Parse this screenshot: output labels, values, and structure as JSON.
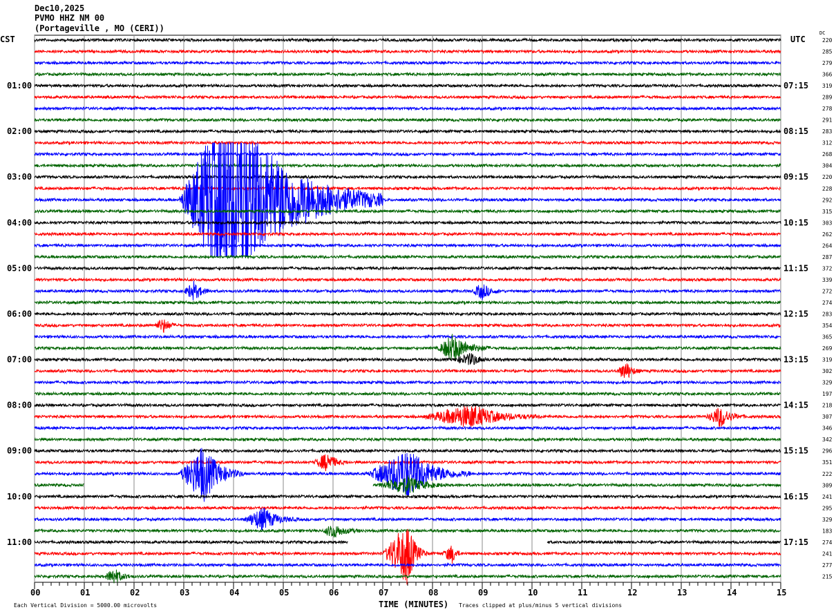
{
  "header": {
    "date": "Dec10,2025",
    "station": "PVMO HHZ NM 00",
    "location": "(Portageville , MO (CERI))"
  },
  "chart_data": {
    "type": "line",
    "title": "PVMO HHZ NM 00",
    "left_timezone": "CST",
    "right_timezone": "UTC",
    "dc_label": "DC",
    "xlabel": "TIME (MINUTES)",
    "xlim": [
      0,
      15
    ],
    "x_ticks": [
      "00",
      "01",
      "02",
      "03",
      "04",
      "05",
      "06",
      "07",
      "08",
      "09",
      "10",
      "11",
      "12",
      "13",
      "14",
      "15"
    ],
    "left_hour_labels": [
      "01:00",
      "02:00",
      "03:00",
      "04:00",
      "05:00",
      "06:00",
      "07:00",
      "08:00",
      "09:00",
      "10:00",
      "11:00"
    ],
    "right_hour_labels": [
      "07:15",
      "08:15",
      "09:15",
      "10:15",
      "11:15",
      "12:15",
      "13:15",
      "14:15",
      "15:15",
      "16:15",
      "17:15"
    ],
    "rows_per_hour": 4,
    "trace_colors": [
      "#000000",
      "#ff0000",
      "#0000ff",
      "#006400"
    ],
    "dc_values": [
      "220",
      "285",
      "279",
      "366",
      "319",
      "289",
      "278",
      "291",
      "283",
      "312",
      "268",
      "304",
      "220",
      "228",
      "292",
      "315",
      "303",
      "262",
      "264",
      "287",
      "372",
      "339",
      "272",
      "274",
      "283",
      "354",
      "365",
      "269",
      "319",
      "302",
      "329",
      "197",
      "218",
      "307",
      "346",
      "342",
      "296",
      "351",
      "222",
      "309",
      "241",
      "295",
      "329",
      "183",
      "274",
      "241",
      "277",
      "215"
    ],
    "events": [
      {
        "row": 14,
        "start_min": 2.9,
        "peak_min": 3.9,
        "end_min": 7.0,
        "amplitude_div": 9
      },
      {
        "row": 22,
        "start_min": 3.0,
        "peak_min": 3.2,
        "end_min": 3.6,
        "amplitude_div": 0.8
      },
      {
        "row": 22,
        "start_min": 8.8,
        "peak_min": 9.0,
        "end_min": 9.4,
        "amplitude_div": 0.7
      },
      {
        "row": 25,
        "start_min": 2.4,
        "peak_min": 2.6,
        "end_min": 2.9,
        "amplitude_div": 0.6
      },
      {
        "row": 27,
        "start_min": 8.1,
        "peak_min": 8.4,
        "end_min": 9.2,
        "amplitude_div": 1.2
      },
      {
        "row": 28,
        "start_min": 8.4,
        "peak_min": 8.8,
        "end_min": 9.2,
        "amplitude_div": 0.5
      },
      {
        "row": 29,
        "start_min": 11.7,
        "peak_min": 11.9,
        "end_min": 12.2,
        "amplitude_div": 0.8
      },
      {
        "row": 33,
        "start_min": 7.8,
        "peak_min": 8.8,
        "end_min": 10.2,
        "amplitude_div": 1.0
      },
      {
        "row": 33,
        "start_min": 13.5,
        "peak_min": 13.8,
        "end_min": 14.3,
        "amplitude_div": 0.9
      },
      {
        "row": 37,
        "start_min": 5.6,
        "peak_min": 5.9,
        "end_min": 6.3,
        "amplitude_div": 0.8
      },
      {
        "row": 38,
        "start_min": 2.9,
        "peak_min": 3.4,
        "end_min": 4.2,
        "amplitude_div": 2.5
      },
      {
        "row": 38,
        "start_min": 6.7,
        "peak_min": 7.5,
        "end_min": 8.8,
        "amplitude_div": 2.2
      },
      {
        "row": 39,
        "start_min": 6.9,
        "peak_min": 7.5,
        "end_min": 8.3,
        "amplitude_div": 0.8
      },
      {
        "row": 42,
        "start_min": 4.2,
        "peak_min": 4.6,
        "end_min": 5.3,
        "amplitude_div": 1.0
      },
      {
        "row": 43,
        "start_min": 5.8,
        "peak_min": 6.0,
        "end_min": 6.6,
        "amplitude_div": 0.6
      },
      {
        "row": 45,
        "start_min": 7.0,
        "peak_min": 7.5,
        "end_min": 7.9,
        "amplitude_div": 2.8
      },
      {
        "row": 45,
        "start_min": 8.2,
        "peak_min": 8.4,
        "end_min": 8.6,
        "amplitude_div": 0.8
      },
      {
        "row": 47,
        "start_min": 1.4,
        "peak_min": 1.6,
        "end_min": 2.0,
        "amplitude_div": 0.7
      }
    ],
    "gaps": [
      {
        "row": 39,
        "start_min": 1.0,
        "end_min": 6.8
      },
      {
        "row": 44,
        "start_min": 6.3,
        "end_min": 10.3
      }
    ],
    "grid": true
  },
  "footer": {
    "scale_note": "Each Vertical Division = 5000.00 microvolts",
    "clip_note": "Traces clipped at plus/minus 5 vertical divisions"
  }
}
